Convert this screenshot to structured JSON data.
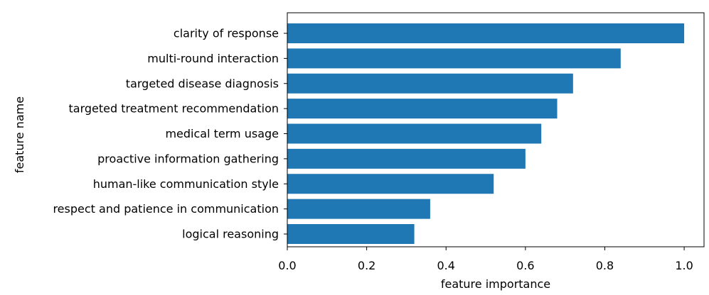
{
  "chart_data": {
    "type": "bar",
    "orientation": "horizontal",
    "categories": [
      "clarity of response",
      "multi-round interaction",
      "targeted disease diagnosis",
      "targeted treatment recommendation",
      "medical term usage",
      "proactive information gathering",
      "human-like communication style",
      "respect and patience in communication",
      "logical reasoning"
    ],
    "values": [
      1.0,
      0.84,
      0.72,
      0.68,
      0.64,
      0.6,
      0.52,
      0.36,
      0.32
    ],
    "xlabel": "feature importance",
    "ylabel": "feature name",
    "xlim": [
      0.0,
      1.05
    ],
    "xticks": [
      0.0,
      0.2,
      0.4,
      0.6,
      0.8,
      1.0
    ],
    "xtick_labels": [
      "0.0",
      "0.2",
      "0.4",
      "0.6",
      "0.8",
      "1.0"
    ],
    "grid": false,
    "bar_color": "#1f77b4"
  }
}
